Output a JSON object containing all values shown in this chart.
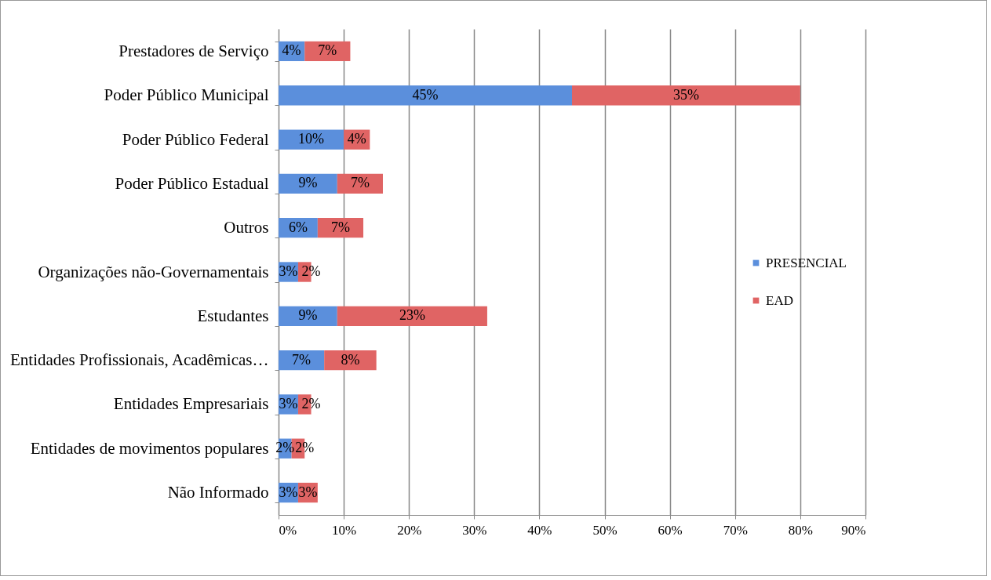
{
  "chart_data": {
    "type": "bar",
    "orientation": "horizontal",
    "stacked": true,
    "categories": [
      "Prestadores de Serviço",
      "Poder Público Municipal",
      "Poder Público Federal",
      "Poder Público Estadual",
      "Outros",
      "Organizações não-Governamentais",
      "Estudantes",
      "Entidades Profissionais, Acadêmicas…",
      "Entidades Empresariais",
      "Entidades de movimentos populares",
      "Não Informado"
    ],
    "series": [
      {
        "name": "PRESENCIAL",
        "color": "#5b8fdc",
        "values": [
          4,
          45,
          10,
          9,
          6,
          3,
          9,
          7,
          3,
          2,
          3
        ],
        "value_labels": [
          "4%",
          "45%",
          "10%",
          "9%",
          "6%",
          "3%",
          "9%",
          "7%",
          "3%",
          "2%",
          "3%"
        ]
      },
      {
        "name": "EAD",
        "color": "#e06464",
        "values": [
          7,
          35,
          4,
          7,
          7,
          2,
          23,
          8,
          2,
          2,
          3
        ],
        "value_labels": [
          "7%",
          "35%",
          "4%",
          "7%",
          "7%",
          "2%",
          "23%",
          "8%",
          "2%",
          "2%",
          "3%"
        ]
      }
    ],
    "xlim": [
      0,
      90
    ],
    "xticks": [
      {
        "value": 0,
        "label": "0%"
      },
      {
        "value": 10,
        "label": "10%"
      },
      {
        "value": 20,
        "label": "20%"
      },
      {
        "value": 30,
        "label": "30%"
      },
      {
        "value": 40,
        "label": "40%"
      },
      {
        "value": 50,
        "label": "50%"
      },
      {
        "value": 60,
        "label": "60%"
      },
      {
        "value": 70,
        "label": "70%"
      },
      {
        "value": 80,
        "label": "80%"
      },
      {
        "value": 90,
        "label": "90%"
      }
    ],
    "grid": "x",
    "legend": "right"
  }
}
